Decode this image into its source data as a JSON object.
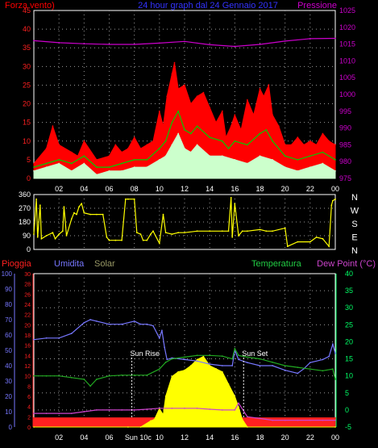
{
  "colors": {
    "background": "#000000",
    "frame": "#ffffff",
    "grid": "#9a9a9a",
    "wind_gust": "#ff0000",
    "wind_avg": "#00cc00",
    "wind_min": "#ccffcc",
    "pressure": "#cc00cc",
    "title": "#3333ff",
    "direction": "#ffff00",
    "rain": "#ff2020",
    "humidity": "#7777ff",
    "solar": "#ffff00",
    "solar_label": "#999966",
    "temperature": "#22aa22",
    "dew_point": "#cc44cc",
    "temp_axis": "#00ff66",
    "annotation": "#ffffff"
  },
  "x_ticks": [
    "02",
    "04",
    "06",
    "08",
    "10",
    "12",
    "14",
    "16",
    "18",
    "20",
    "22",
    "00"
  ],
  "chart_data": [
    {
      "type": "line",
      "title": "24 hour graph dal 24 Gennaio 2017",
      "left_axis_label": "Forza vento)",
      "right_axis_label": "Pressione",
      "left_ticks": [
        "0",
        "5",
        "10",
        "15",
        "20",
        "25",
        "30",
        "35",
        "40",
        "45"
      ],
      "right_ticks": [
        "975",
        "980",
        "985",
        "990",
        "995",
        "1000",
        "1005",
        "1010",
        "1015",
        "1020",
        "1025"
      ],
      "xlim": [
        0,
        24
      ],
      "ylim_left": [
        0,
        45
      ],
      "ylim_right": [
        975,
        1025
      ],
      "grid": true,
      "series": [
        {
          "axis": "left",
          "style": "area",
          "color_key": "wind_gust",
          "x": [
            0,
            1,
            1.5,
            2,
            3,
            3.5,
            4,
            5,
            6,
            6.5,
            7,
            7.5,
            8,
            8.5,
            9,
            9.5,
            10,
            10.3,
            10.6,
            11,
            11.2,
            11.5,
            12,
            12.5,
            13,
            13.5,
            14,
            14.5,
            15,
            15.3,
            15.7,
            16,
            16.5,
            17,
            17.5,
            18,
            18.3,
            18.7,
            19,
            19.5,
            20,
            20.5,
            21,
            21.5,
            22,
            22.5,
            23,
            23.5,
            24
          ],
          "values": [
            4,
            8,
            14,
            9,
            7,
            6,
            10,
            5,
            6,
            9,
            7,
            8,
            11,
            8,
            9,
            10,
            18,
            14,
            22,
            28,
            31,
            24,
            25,
            20,
            22,
            23,
            19,
            15,
            18,
            11,
            14,
            17,
            13,
            21,
            17,
            24,
            22,
            25,
            17,
            14,
            9,
            9,
            11,
            9,
            10,
            9,
            12,
            10,
            9
          ]
        },
        {
          "axis": "left",
          "style": "line",
          "color_key": "wind_avg",
          "x": [
            0,
            1,
            2,
            3,
            4,
            5,
            6,
            7,
            8,
            9,
            10,
            10.5,
            11,
            11.5,
            12,
            12.5,
            13,
            14,
            15,
            15.5,
            16,
            17,
            18,
            18.5,
            19,
            20,
            21,
            22,
            23,
            24
          ],
          "values": [
            3,
            4,
            5,
            4,
            6,
            3,
            3,
            4,
            5,
            5,
            8,
            10,
            15,
            18,
            13,
            12,
            14,
            11,
            10,
            8,
            10,
            9,
            12,
            13,
            10,
            6,
            5,
            6,
            7,
            5
          ]
        },
        {
          "axis": "left",
          "style": "area",
          "color_key": "wind_min",
          "x": [
            0,
            1,
            2,
            3,
            4,
            5,
            6,
            7,
            8,
            9,
            10,
            10.5,
            11,
            11.5,
            12,
            12.5,
            13,
            14,
            15,
            16,
            17,
            18,
            19,
            20,
            21,
            22,
            23,
            24
          ],
          "values": [
            2,
            3,
            4,
            2,
            4,
            1,
            2,
            2,
            3,
            3,
            5,
            6,
            9,
            12,
            8,
            7,
            9,
            6,
            6,
            5,
            4,
            6,
            5,
            3,
            2,
            3,
            4,
            2
          ]
        },
        {
          "axis": "right",
          "style": "line",
          "color_key": "pressure",
          "x": [
            0,
            2,
            4,
            6,
            8,
            10,
            12,
            14,
            16,
            18,
            20,
            22,
            24
          ],
          "values": [
            1016,
            1015.4,
            1015.1,
            1014.9,
            1014.9,
            1015.3,
            1015.8,
            1014.8,
            1014.3,
            1014.9,
            1015.9,
            1016.6,
            1016.7
          ]
        }
      ]
    },
    {
      "type": "line",
      "left_ticks": [
        "0",
        "90",
        "180",
        "270",
        "360"
      ],
      "right_labels": [
        "N",
        "W",
        "S",
        "E",
        "N"
      ],
      "xlim": [
        0,
        24
      ],
      "ylim": [
        0,
        360
      ],
      "grid": true,
      "series": [
        {
          "color_key": "direction",
          "x": [
            0,
            0.2,
            0.3,
            0.5,
            0.6,
            1,
            1.5,
            1.7,
            2,
            2.3,
            2.4,
            2.6,
            3,
            3.2,
            3.4,
            3.6,
            3.8,
            4,
            4.5,
            5,
            5.5,
            5.8,
            6,
            6.5,
            7,
            7.3,
            7.5,
            8,
            8.2,
            8.5,
            8.7,
            9,
            9.3,
            9.5,
            10,
            10.3,
            10.5,
            11,
            11.5,
            12,
            13,
            14,
            15,
            15.5,
            15.7,
            15.8,
            16,
            16.3,
            16.6,
            17,
            18,
            18.5,
            19,
            20,
            20.2,
            21,
            22,
            22.5,
            23,
            23.5,
            23.7,
            23.8,
            24
          ],
          "values": [
            100,
            330,
            80,
            290,
            70,
            90,
            110,
            70,
            100,
            120,
            280,
            90,
            200,
            240,
            230,
            280,
            300,
            240,
            230,
            230,
            230,
            80,
            60,
            60,
            60,
            330,
            330,
            330,
            110,
            100,
            60,
            60,
            100,
            120,
            40,
            230,
            110,
            100,
            110,
            110,
            120,
            120,
            120,
            120,
            340,
            80,
            300,
            90,
            120,
            120,
            130,
            120,
            120,
            140,
            20,
            50,
            50,
            80,
            70,
            20,
            290,
            320,
            330
          ]
        }
      ]
    },
    {
      "type": "line",
      "labels": {
        "rain": "Pioggia",
        "humidity": "Umidita",
        "solar": "Solar",
        "temperature": "Temperatura",
        "dew_point": "Dew Point (°C)"
      },
      "rain_ticks": [
        "0",
        "2",
        "4",
        "6",
        "8",
        "10",
        "12",
        "14",
        "16",
        "18",
        "20",
        "22",
        "24",
        "26",
        "28",
        "30"
      ],
      "humidity_ticks": [
        "0",
        "10",
        "20",
        "30",
        "40",
        "50",
        "60",
        "70",
        "80",
        "90",
        "100"
      ],
      "temperature_ticks": [
        "-5",
        "0",
        "5",
        "10",
        "15",
        "20",
        "25",
        "30",
        "35",
        "40"
      ],
      "xlim": [
        0,
        24
      ],
      "ylim_humidity": [
        0,
        100
      ],
      "ylim_temperature": [
        -5,
        40
      ],
      "grid": true,
      "annotations": [
        {
          "text": "Sun Rise",
          "x": 7.8
        },
        {
          "text": "Sun Set",
          "x": 16.7
        },
        {
          "text": "Sun 10c",
          "x": 8.3
        }
      ],
      "series": [
        {
          "name": "Pioggia",
          "axis": "rain",
          "style": "area",
          "color_key": "rain",
          "x": [
            0,
            24
          ],
          "values": [
            1.8,
            1.8
          ]
        },
        {
          "name": "Solar",
          "axis": "solar",
          "style": "area",
          "color_key": "solar",
          "x": [
            0,
            7.5,
            8.5,
            9.3,
            9.6,
            10,
            10.3,
            10.5,
            11,
            11.5,
            12,
            12.5,
            13,
            13.5,
            14,
            14.5,
            15,
            15.5,
            16,
            16.3,
            16.6,
            17,
            24
          ],
          "values": [
            0,
            0,
            0,
            4,
            5,
            12,
            8,
            20,
            33,
            36,
            37,
            40,
            44,
            46,
            40,
            38,
            36,
            28,
            20,
            13,
            5,
            0,
            0
          ]
        },
        {
          "name": "Umidita",
          "axis": "humidity",
          "style": "line",
          "color_key": "humidity",
          "x": [
            0,
            1,
            2,
            3,
            4,
            4.5,
            5,
            6,
            7,
            8,
            8.5,
            9,
            9.5,
            10,
            10.2,
            10.4,
            10.6,
            11,
            12,
            13,
            14,
            15,
            15.8,
            16,
            16.3,
            17,
            18,
            19,
            20,
            21,
            21.5,
            22,
            23,
            23.5,
            23.8,
            24
          ],
          "values": [
            57,
            58,
            58,
            61,
            68,
            70,
            69,
            67,
            67,
            69,
            67,
            67,
            66,
            58,
            63,
            52,
            44,
            45,
            44,
            43,
            41,
            40,
            40,
            50,
            44,
            42,
            40,
            40,
            37,
            35,
            38,
            42,
            44,
            46,
            54,
            48
          ]
        },
        {
          "name": "Temperatura",
          "axis": "temperature",
          "style": "line",
          "color_key": "temperature",
          "x": [
            0,
            1,
            2,
            3,
            4,
            4.5,
            5,
            6,
            7,
            8,
            9,
            10,
            10.5,
            11,
            12,
            13,
            14,
            15,
            15.8,
            16,
            16.3,
            17,
            18,
            19,
            20,
            21,
            22,
            23,
            23.8,
            24
          ],
          "values": [
            10,
            10,
            10,
            9.5,
            9,
            7,
            9,
            10,
            10.2,
            10.2,
            10.2,
            12,
            14,
            15,
            15.5,
            16,
            16,
            15.8,
            15,
            18,
            16,
            15.5,
            15,
            14,
            13,
            12.5,
            12,
            11.5,
            12,
            9
          ]
        },
        {
          "name": "Dew Point (°C)",
          "axis": "temperature",
          "style": "line",
          "color_key": "dew_point",
          "x": [
            0,
            1,
            2,
            3,
            4,
            5,
            6,
            7,
            8,
            9,
            10,
            11,
            12,
            13,
            14,
            15,
            16,
            16.3,
            17,
            18,
            19,
            20,
            21,
            22,
            23,
            24
          ],
          "values": [
            -1,
            -1,
            -1,
            -1,
            -0.5,
            0,
            0,
            0,
            0,
            0.2,
            0.5,
            0.5,
            0.5,
            0.5,
            0.2,
            0,
            0,
            2,
            -2,
            -2.5,
            -3,
            -3,
            -3,
            -3,
            -3,
            -3
          ]
        }
      ]
    }
  ]
}
